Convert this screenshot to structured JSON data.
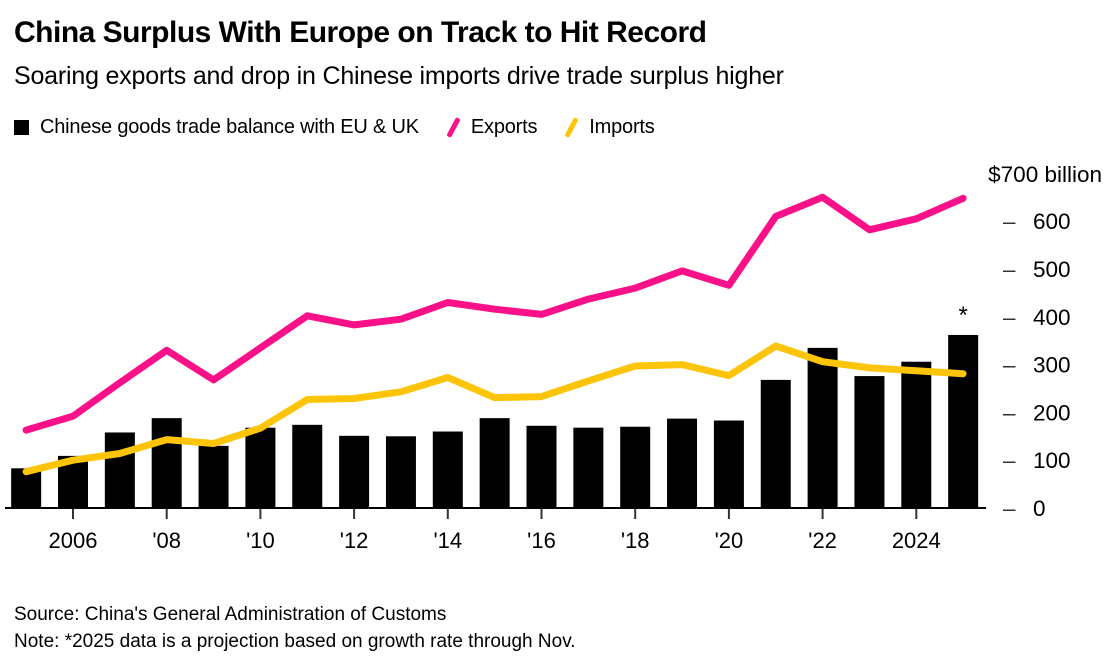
{
  "header": {
    "title": "China Surplus With Europe on Track to Hit Record",
    "subtitle": "Soaring exports and drop in Chinese imports drive trade surplus higher"
  },
  "legend": [
    {
      "label": "Chinese goods trade balance with EU & UK",
      "swatch": "square",
      "color": "#000000"
    },
    {
      "label": "Exports",
      "swatch": "slash",
      "color": "#fa1088"
    },
    {
      "label": "Imports",
      "swatch": "slash",
      "color": "#fdc408"
    }
  ],
  "footer": {
    "source": "Source: China's General Administration of Customs",
    "note": "Note: *2025 data is a projection based on growth rate through Nov."
  },
  "chart_data": {
    "type": "bar+line",
    "title": "China Surplus With Europe on Track to Hit Record",
    "unit": "USD billion",
    "x": [
      2005,
      2006,
      2007,
      2008,
      2009,
      2010,
      2011,
      2012,
      2013,
      2014,
      2015,
      2016,
      2017,
      2018,
      2019,
      2020,
      2021,
      2022,
      2023,
      2024,
      2025
    ],
    "series": [
      {
        "name": "Chinese goods trade balance with EU & UK",
        "type": "bar",
        "color": "#000000",
        "values": [
          83,
          109,
          158,
          188,
          130,
          168,
          174,
          151,
          150,
          160,
          188,
          172,
          168,
          170,
          187,
          183,
          268,
          335,
          276,
          306,
          362
        ]
      },
      {
        "name": "Exports",
        "type": "line",
        "color": "#fa1088",
        "values": [
          163,
          192,
          262,
          330,
          268,
          335,
          402,
          383,
          395,
          430,
          416,
          405,
          437,
          460,
          496,
          466,
          610,
          650,
          582,
          605,
          648
        ]
      },
      {
        "name": "Imports",
        "type": "line",
        "color": "#fdc408",
        "values": [
          76,
          100,
          114,
          143,
          135,
          167,
          227,
          229,
          243,
          273,
          231,
          233,
          266,
          297,
          300,
          277,
          339,
          306,
          293,
          287,
          281
        ]
      }
    ],
    "ylim": [
      0,
      700
    ],
    "grid": false,
    "legend_position": "top-left",
    "y_axis": {
      "side": "right",
      "top_label": "$700 billion",
      "ticks": [
        0,
        100,
        200,
        300,
        400,
        500,
        600
      ],
      "tick_prefix": "–"
    },
    "x_axis": {
      "tick_labels": [
        {
          "year": 2006,
          "label": "2006"
        },
        {
          "year": 2008,
          "label": "'08"
        },
        {
          "year": 2010,
          "label": "'10"
        },
        {
          "year": 2012,
          "label": "'12"
        },
        {
          "year": 2014,
          "label": "'14"
        },
        {
          "year": 2016,
          "label": "'16"
        },
        {
          "year": 2018,
          "label": "'18"
        },
        {
          "year": 2020,
          "label": "'20"
        },
        {
          "year": 2022,
          "label": "'22"
        },
        {
          "year": 2024,
          "label": "2024"
        }
      ]
    },
    "annotations": [
      {
        "text": "*",
        "year": 2025,
        "meaning": "2025 projection"
      }
    ]
  }
}
